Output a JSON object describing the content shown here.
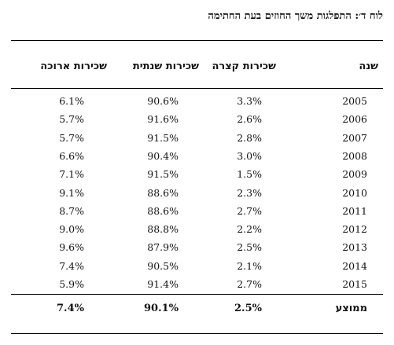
{
  "title": "לוח ד׳: התפלגות משך החוזים בעת החתימה",
  "headers": {
    "year": "שנה",
    "short": "שכירות קצרה",
    "annual": "שכירות שנתית",
    "long": "שכירות ארוכה"
  },
  "rows": [
    {
      "year": "2005",
      "short": "3.3%",
      "annual": "90.6%",
      "long": "6.1%"
    },
    {
      "year": "2006",
      "short": "2.6%",
      "annual": "91.6%",
      "long": "5.7%"
    },
    {
      "year": "2007",
      "short": "2.8%",
      "annual": "91.5%",
      "long": "5.7%"
    },
    {
      "year": "2008",
      "short": "3.0%",
      "annual": "90.4%",
      "long": "6.6%"
    },
    {
      "year": "2009",
      "short": "1.5%",
      "annual": "91.5%",
      "long": "7.1%"
    },
    {
      "year": "2010",
      "short": "2.3%",
      "annual": "88.6%",
      "long": "9.1%"
    },
    {
      "year": "2011",
      "short": "2.7%",
      "annual": "88.6%",
      "long": "8.7%"
    },
    {
      "year": "2012",
      "short": "2.2%",
      "annual": "88.8%",
      "long": "9.0%"
    },
    {
      "year": "2013",
      "short": "2.5%",
      "annual": "87.9%",
      "long": "9.6%"
    },
    {
      "year": "2014",
      "short": "2.1%",
      "annual": "90.5%",
      "long": "7.4%"
    },
    {
      "year": "2015",
      "short": "2.7%",
      "annual": "91.4%",
      "long": "5.9%"
    }
  ],
  "average": {
    "label": "ממוצע",
    "short": "2.5%",
    "annual": "90.1%",
    "long": "7.4%"
  }
}
